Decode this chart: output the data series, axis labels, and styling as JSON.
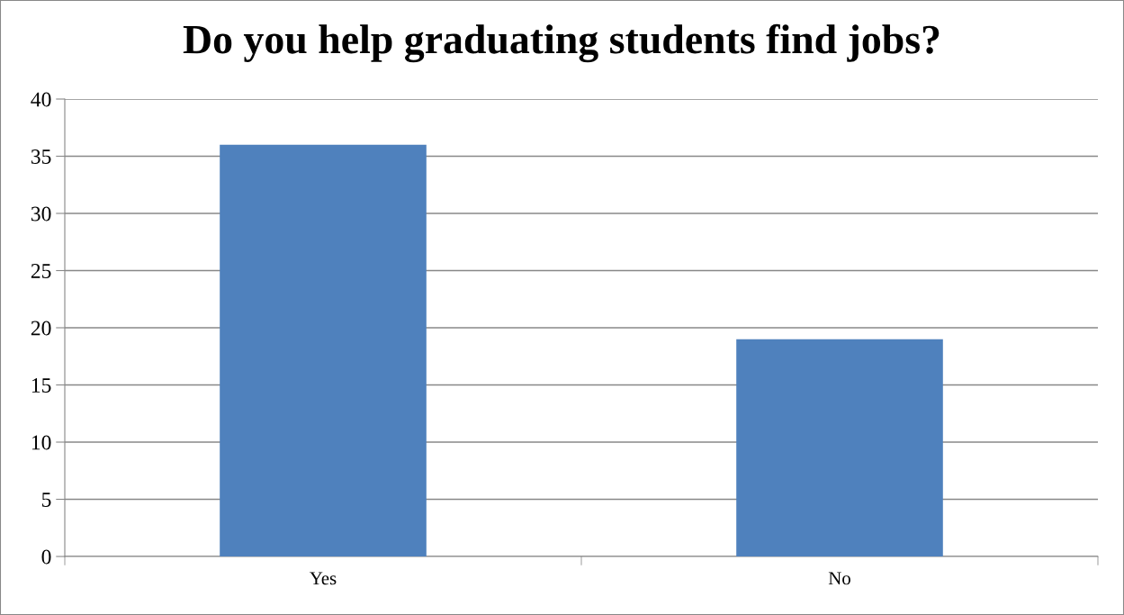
{
  "chart_data": {
    "type": "bar",
    "title": "Do you help graduating students find jobs?",
    "categories": [
      "Yes",
      "No"
    ],
    "values": [
      36,
      19
    ],
    "color": "#4f81bd",
    "ylim": [
      0,
      40
    ],
    "yticks": [
      0,
      5,
      10,
      15,
      20,
      25,
      30,
      35,
      40
    ],
    "grid": "y",
    "legend": false
  }
}
